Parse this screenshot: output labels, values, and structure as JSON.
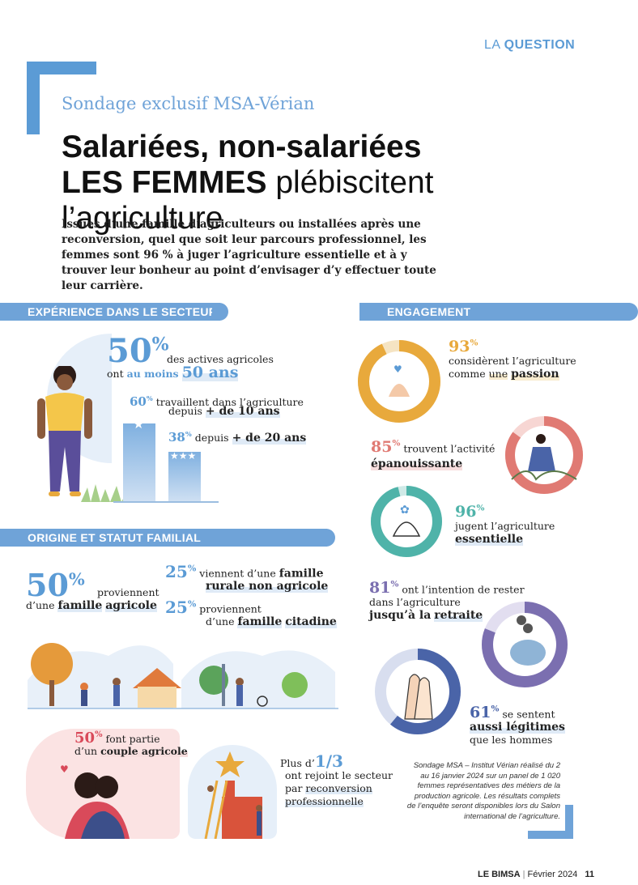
{
  "header": {
    "section_prefix": "LA",
    "section_name": "QUESTION"
  },
  "kicker": "Sondage exclusif MSA-Vérian",
  "title": {
    "line1": "Salariées, non-salariées",
    "line2_bold": "LES FEMMES",
    "line2_rest": " plébiscitent l’agriculture"
  },
  "intro": "Issues d’une famille d’agriculteurs ou installées après une reconversion, quel que soit leur parcours professionnel, les femmes sont 96 % à juger l’agriculture essentielle et à y trouver leur bonheur au point d’envisager d’y effectuer toute leur carrière.",
  "experience": {
    "heading": "EXPÉRIENCE DANS LE SECTEUR",
    "stat1": {
      "value": "50",
      "unit": "%",
      "text": "des actives agricoles",
      "prefix": "ont",
      "mid": "au moins",
      "emph": "50 ans"
    },
    "stat2": {
      "value": "60",
      "unit": "%",
      "text": "travaillent dans l’agriculture",
      "prefix": "depuis",
      "emph": "+ de 10 ans"
    },
    "stat3": {
      "value": "38",
      "unit": "%",
      "prefix": "depuis",
      "emph": "+ de 20 ans"
    },
    "bars": {
      "bar1": 60,
      "bar2": 38
    }
  },
  "origine": {
    "heading": "ORIGINE ET STATUT FAMILIAL",
    "stat1": {
      "value": "50",
      "unit": "%",
      "text": "proviennent",
      "line2": "d’une",
      "emph1": "famille",
      "emph2": "agricole"
    },
    "stat2": {
      "value": "25",
      "unit": "%",
      "text": "viennent d’une",
      "emph1": "famille",
      "emph2": "rurale non agricole"
    },
    "stat3": {
      "value": "25",
      "unit": "%",
      "text": "proviennent",
      "line2": "d’une",
      "emph1": "famille",
      "emph2": "citadine"
    },
    "stat4": {
      "value": "50",
      "unit": "%",
      "text": "font partie",
      "line2": "d’un",
      "emph": "couple agricole"
    },
    "stat5": {
      "prefix": "Plus d’",
      "value": "1/3",
      "line1": "ont rejoint le secteur",
      "line2": "par",
      "emph1": "reconversion",
      "emph2": "professionnelle"
    }
  },
  "engagement": {
    "heading": "ENGAGEMENT",
    "items": [
      {
        "value": "93",
        "unit": "%",
        "line1": "considèrent l’agriculture",
        "line2": "comme",
        "mid": "une",
        "emph": "passion",
        "ring": 93,
        "color": "#e8a93c"
      },
      {
        "value": "85",
        "unit": "%",
        "line1": "trouvent l’activité",
        "emph": "épanouissante",
        "ring": 85,
        "color": "#e07a73"
      },
      {
        "value": "96",
        "unit": "%",
        "line1": "jugent l’agriculture",
        "emph": "essentielle",
        "ring": 96,
        "color": "#4fb3a9"
      },
      {
        "value": "81",
        "unit": "%",
        "line1": "ont l’intention de rester",
        "line2": "dans l’agriculture",
        "emph1": "jusqu’à la",
        "emph2": "retraite",
        "ring": 81,
        "color": "#7b6fb0"
      },
      {
        "value": "61",
        "unit": "%",
        "line1": "se sentent",
        "emph": "aussi légitimes",
        "line3": "que les hommes",
        "ring": 61,
        "color": "#4a64a8"
      }
    ]
  },
  "source": "Sondage MSA – Institut Vérian réalisé du 2 au 16 janvier 2024 sur un panel de 1 020 femmes représentatives des métiers de la production agricole. Les résultats complets de l’enquête seront disponibles lors du Salon international de l’agriculture.",
  "footer": {
    "pub": "LE BIMSA",
    "sep": "|",
    "date": "Février 2024",
    "page": "11"
  }
}
